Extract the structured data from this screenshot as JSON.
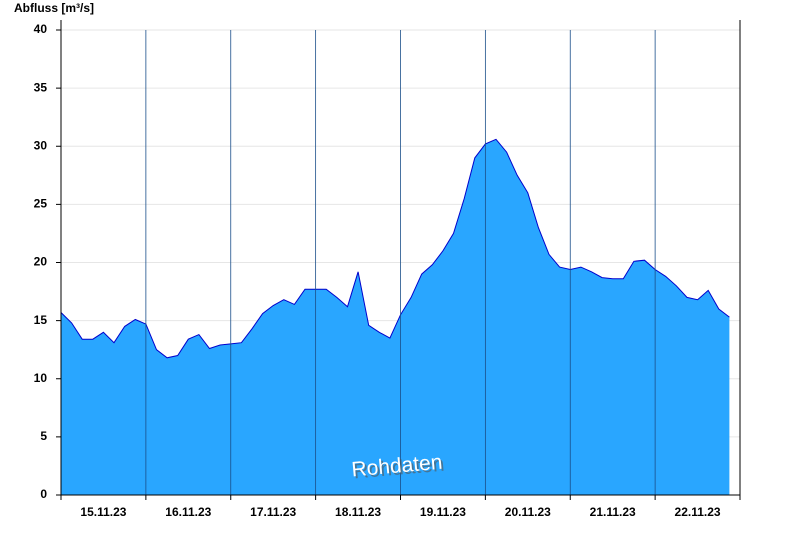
{
  "chart_data": {
    "type": "area",
    "ylabel": "Abfluss [m³/s]",
    "annotation": "Rohdaten",
    "categories": [
      "15.11.23",
      "16.11.23",
      "17.11.23",
      "18.11.23",
      "19.11.23",
      "20.11.23",
      "21.11.23",
      "22.11.23"
    ],
    "values": [
      [
        15.7,
        14.8,
        13.4,
        13.4,
        14.0,
        13.1,
        14.5,
        15.1
      ],
      [
        14.7,
        12.5,
        11.8,
        12.0,
        13.4,
        13.8,
        12.6,
        12.9
      ],
      [
        13.0,
        13.1,
        14.3,
        15.6,
        16.3,
        16.8,
        16.4,
        17.7
      ],
      [
        17.7,
        17.7,
        17.0,
        16.2,
        19.2,
        14.6,
        14.0,
        13.5
      ],
      [
        15.5,
        17.0,
        19.0,
        19.8,
        21.0,
        22.5,
        25.5,
        29.0
      ],
      [
        30.2,
        30.6,
        29.5,
        27.5,
        26.0,
        23.0,
        20.7,
        19.6
      ],
      [
        19.4,
        19.6,
        19.2,
        18.7,
        18.6,
        18.6,
        20.1,
        20.2
      ],
      [
        19.4,
        18.8,
        18.0,
        17.0,
        16.8,
        17.6,
        16.0,
        15.3
      ]
    ],
    "color": "#29a6ff",
    "line_color": "#0000cc",
    "ylim": [
      0,
      40
    ],
    "yticks": [
      0,
      5,
      10,
      15,
      20,
      25,
      30,
      35,
      40
    ],
    "grid": true
  }
}
